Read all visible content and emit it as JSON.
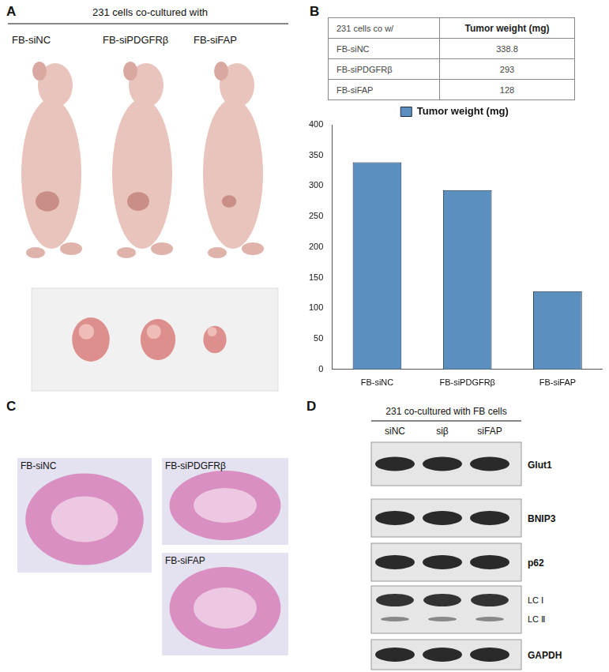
{
  "panels": {
    "A": {
      "letter": "A",
      "title": "231 cells co-cultured with",
      "labels": [
        "FB-siNC",
        "FB-siPDGFRβ",
        "FB-siFAP"
      ]
    },
    "B": {
      "letter": "B",
      "table": {
        "header": [
          "231 cells co w/",
          "Tumor weight (mg)"
        ],
        "rows": [
          [
            "FB-siNC",
            338.8
          ],
          [
            "FB-siPDGFRβ",
            293
          ],
          [
            "FB-siFAP",
            128
          ]
        ]
      }
    },
    "C": {
      "letter": "C",
      "labels": [
        "FB-siNC",
        "FB-siPDGFRβ",
        "FB-siFAP"
      ]
    },
    "D": {
      "letter": "D",
      "title": "231 co-cultured with FB cells",
      "lanes": [
        "siNC",
        "siβ",
        "siFAP"
      ],
      "proteins": [
        "Glut1",
        "BNIP3",
        "p62",
        "LC Ⅰ",
        "LC Ⅱ",
        "GAPDH"
      ]
    }
  },
  "chart_data": {
    "type": "bar",
    "categories": [
      "FB-siNC",
      "FB-siPDGFRβ",
      "FB-siFAP"
    ],
    "series": [
      {
        "name": "Tumor weight (mg)",
        "color": "#5b8fbf",
        "values": [
          338.8,
          293,
          128
        ]
      }
    ],
    "ylim": [
      0,
      400
    ],
    "yticks": [
      0,
      50,
      100,
      150,
      200,
      250,
      300,
      350,
      400
    ],
    "grid": false,
    "legend": "top"
  }
}
